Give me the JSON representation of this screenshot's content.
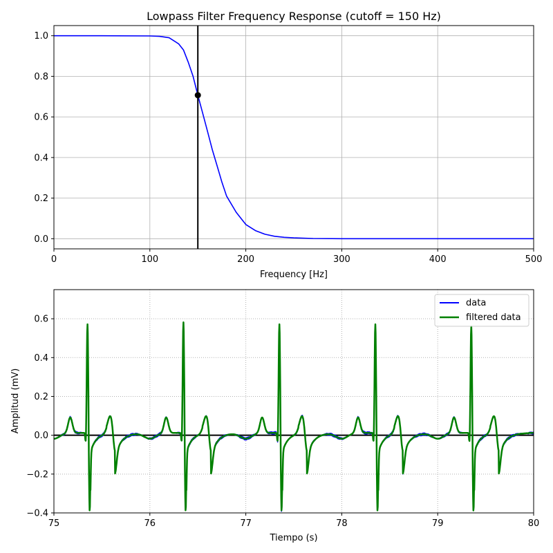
{
  "chart_data": [
    {
      "type": "line",
      "title": "Lowpass Filter Frequency Response (cutoff = 150 Hz)",
      "xlabel": "Frequency [Hz]",
      "ylabel": "",
      "xlim": [
        0,
        500
      ],
      "ylim": [
        -0.05,
        1.05
      ],
      "xticks": [
        0,
        100,
        200,
        300,
        400,
        500
      ],
      "yticks": [
        0.0,
        0.2,
        0.4,
        0.6,
        0.8,
        1.0
      ],
      "xtick_labels": [
        "0",
        "100",
        "200",
        "300",
        "400",
        "500"
      ],
      "ytick_labels": [
        "0.0",
        "0.2",
        "0.4",
        "0.6",
        "0.8",
        "1.0"
      ],
      "grid": true,
      "series": [
        {
          "color": "#0000ff",
          "x": [
            0,
            50,
            100,
            110,
            120,
            130,
            135,
            140,
            145,
            150,
            155,
            160,
            165,
            170,
            175,
            180,
            190,
            200,
            210,
            220,
            230,
            240,
            250,
            270,
            300,
            350,
            400,
            450,
            500
          ],
          "y": [
            1.0,
            1.0,
            0.999,
            0.997,
            0.99,
            0.96,
            0.93,
            0.87,
            0.8,
            0.707,
            0.62,
            0.53,
            0.44,
            0.36,
            0.28,
            0.21,
            0.13,
            0.07,
            0.04,
            0.022,
            0.012,
            0.007,
            0.004,
            0.001,
            0.0,
            0.0,
            0.0,
            0.0,
            0.0
          ]
        }
      ],
      "cutoff_line": {
        "x": 150,
        "color": "#000000"
      },
      "cutoff_point": {
        "x": 150,
        "y": 0.707,
        "color": "#000000"
      }
    },
    {
      "type": "line",
      "title": "",
      "xlabel": "Tiempo (s)",
      "ylabel": "Amplitud (mV)",
      "xlim": [
        75,
        80
      ],
      "ylim": [
        -0.4,
        0.75
      ],
      "xticks": [
        75,
        76,
        77,
        78,
        79,
        80
      ],
      "yticks": [
        -0.4,
        -0.2,
        0.0,
        0.2,
        0.4,
        0.6
      ],
      "xtick_labels": [
        "75",
        "76",
        "77",
        "78",
        "79",
        "80"
      ],
      "ytick_labels": [
        "−0.4",
        "−0.2",
        "0.0",
        "0.2",
        "0.4",
        "0.6"
      ],
      "grid": true,
      "grid_style": "dotted",
      "zero_line": {
        "y": 0,
        "color": "#000000"
      },
      "legend_position": "top-right",
      "beat_times": [
        75.35,
        76.35,
        77.35,
        78.35,
        79.35
      ],
      "beat_peaks": [
        0.57,
        0.58,
        0.57,
        0.57,
        0.56
      ],
      "series": [
        {
          "name": "data",
          "color": "#0000ff",
          "width": 1.5
        },
        {
          "name": "filtered data",
          "color": "#008000",
          "width": 2.5
        }
      ]
    }
  ]
}
